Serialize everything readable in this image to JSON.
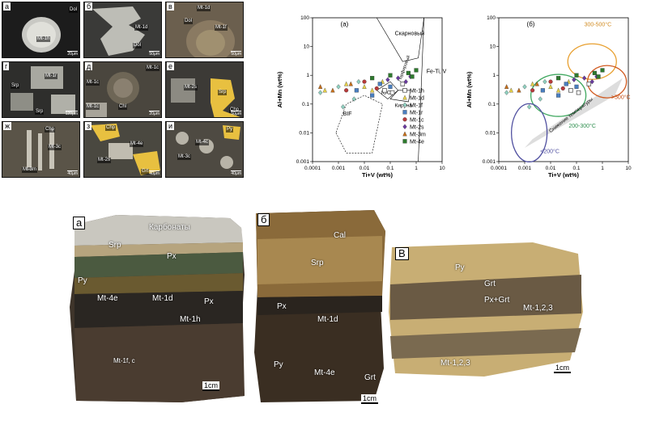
{
  "micrographs": [
    {
      "letter": "а",
      "labels": [
        "Mt-1h",
        "Dol"
      ],
      "scale": "20μm",
      "bg": "#1c1c1c"
    },
    {
      "letter": "б",
      "labels": [
        "Mt-1d",
        "Dol"
      ],
      "scale": "50μm",
      "bg": "#3a3a38"
    },
    {
      "letter": "в",
      "labels": [
        "Mt-1d",
        "Dol",
        "Mt-1f"
      ],
      "scale": "50μm",
      "bg": "#6b5f4e"
    },
    {
      "letter": "г",
      "labels": [
        "Mt-1r",
        "Srp",
        "Srp"
      ],
      "scale": "120μm",
      "bg": "#2e2e2c"
    },
    {
      "letter": "д",
      "labels": [
        "Mt-1c",
        "Mt-1c",
        "Mt-1c",
        "Chl"
      ],
      "scale": "20μm",
      "bg": "#4a463e"
    },
    {
      "letter": "е",
      "labels": [
        "Mt-2s",
        "Srp",
        "Chp"
      ],
      "scale": "50μm",
      "bg": "#3c3a36"
    },
    {
      "letter": "ж",
      "labels": [
        "Chp",
        "Mt-3c",
        "Mt-3m"
      ],
      "scale": "40μm",
      "bg": "#5a5448"
    },
    {
      "letter": "з",
      "labels": [
        "Chp",
        "Mt-4e",
        "Mt-2s",
        "Grt"
      ],
      "scale": "40μm",
      "bg": "#4a4840"
    },
    {
      "letter": "и",
      "labels": [
        "Py",
        "Mt-4c",
        "Mt-3c"
      ],
      "scale": "40μm",
      "bg": "#4e4a42"
    }
  ],
  "chart_a": {
    "panel_label": "(a)",
    "ylabel": "Al+Mn (wt%)",
    "xlabel": "Ti+V (wt%)",
    "field_labels": [
      "Скарновый",
      "Fe-Ti, V",
      "Порфировый",
      "IOCG",
      "Кируна",
      "BIF"
    ]
  },
  "chart_b": {
    "panel_label": "(б)",
    "ylabel": "Al+Mn (wt%)",
    "xlabel": "Ti+V (wt%)",
    "field_labels": [
      "300-500°C",
      "Снижение температуры",
      ">500°C",
      "200-300°C",
      "<200°C"
    ]
  },
  "chart_data": [
    {
      "type": "scatter",
      "title": "(a)",
      "xlabel": "Ti+V (wt%)",
      "ylabel": "Al+Mn (wt%)",
      "x_scale": "log",
      "y_scale": "log",
      "xlim": [
        0.0001,
        10
      ],
      "ylim": [
        0.001,
        100
      ],
      "x_ticks": [
        "0.0001",
        "0.001",
        "0.01",
        "0.1",
        "1",
        "10"
      ],
      "y_ticks": [
        "0.001",
        "0.01",
        "0.1",
        "1",
        "10",
        "100"
      ],
      "series": [
        {
          "name": "Mt-1h",
          "marker": "square-open",
          "color": "#555555",
          "points": [
            [
              0.06,
              0.3
            ],
            [
              0.3,
              0.5
            ],
            [
              0.12,
              0.25
            ]
          ]
        },
        {
          "name": "Mt-1d",
          "marker": "triangle",
          "color": "#e8d24a",
          "points": [
            [
              0.0003,
              0.3
            ],
            [
              0.002,
              0.5
            ],
            [
              0.01,
              0.4
            ],
            [
              0.05,
              0.6
            ],
            [
              0.02,
              0.3
            ]
          ]
        },
        {
          "name": "Mt-1f",
          "marker": "diamond",
          "color": "#8fd0c0",
          "points": [
            [
              0.0002,
              0.25
            ],
            [
              0.001,
              0.4
            ],
            [
              0.004,
              0.15
            ],
            [
              0.0015,
              0.08
            ],
            [
              0.006,
              0.6
            ]
          ]
        },
        {
          "name": "Mt-1r",
          "marker": "square",
          "color": "#4a7fc0",
          "points": [
            [
              0.005,
              0.3
            ],
            [
              0.02,
              0.2
            ],
            [
              0.04,
              0.5
            ],
            [
              0.1,
              0.4
            ]
          ]
        },
        {
          "name": "Mt-1c",
          "marker": "circle",
          "color": "#b83a3a",
          "points": [
            [
              0.002,
              0.3
            ],
            [
              0.01,
              0.6
            ],
            [
              0.03,
              0.35
            ]
          ]
        },
        {
          "name": "Mt-2s",
          "marker": "diamond",
          "color": "#6a3aa0",
          "points": [
            [
              0.08,
              0.7
            ],
            [
              0.2,
              0.8
            ],
            [
              0.4,
              0.6
            ],
            [
              0.6,
              0.9
            ]
          ]
        },
        {
          "name": "Mt-3m",
          "marker": "triangle",
          "color": "#c8701a",
          "points": [
            [
              0.0002,
              0.4
            ],
            [
              0.0006,
              0.3
            ],
            [
              0.003,
              0.5
            ]
          ]
        },
        {
          "name": "Mt-4e",
          "marker": "square",
          "color": "#2e7a2e",
          "points": [
            [
              0.02,
              0.8
            ],
            [
              0.1,
              1.0
            ],
            [
              0.5,
              1.2
            ],
            [
              1.0,
              1.5
            ],
            [
              0.7,
              0.9
            ]
          ]
        }
      ]
    },
    {
      "type": "scatter",
      "title": "(б)",
      "xlabel": "Ti+V (wt%)",
      "ylabel": "Al+Mn (wt%)",
      "x_scale": "log",
      "y_scale": "log",
      "xlim": [
        0.0001,
        10
      ],
      "ylim": [
        0.001,
        100
      ],
      "x_ticks": [
        "0.0001",
        "0.001",
        "0.01",
        "0.1",
        "1",
        "10"
      ],
      "y_ticks": [
        "0.001",
        "0.01",
        "0.1",
        "1",
        "10",
        "100"
      ],
      "regions": [
        "300-500°C",
        ">500°C",
        "200-300°C",
        "<200°C"
      ]
    }
  ],
  "legend": [
    "Mt-1h",
    "Mt-1d",
    "Mt-1f",
    "Mt-1r",
    "Mt-1c",
    "Mt-2s",
    "Mt-3m",
    "Mt-4e"
  ],
  "samples": [
    {
      "label": "а",
      "tags": [
        "Карбонаты",
        "Srp",
        "Px",
        "Py",
        "Mt-4e",
        "Mt-1d",
        "Px",
        "Mt-1h",
        "Mt-1f, c"
      ],
      "scale": "1cm"
    },
    {
      "label": "б",
      "tags": [
        "Cal",
        "Srp",
        "Px",
        "Mt-1d",
        "Py",
        "Mt-4e",
        "Grt"
      ],
      "scale": "1cm"
    },
    {
      "label": "B",
      "tags": [
        "Py",
        "Grt",
        "Px+Grt",
        "Mt-1,2,3",
        "Mt-1,2,3"
      ],
      "scale": "1cm"
    }
  ]
}
